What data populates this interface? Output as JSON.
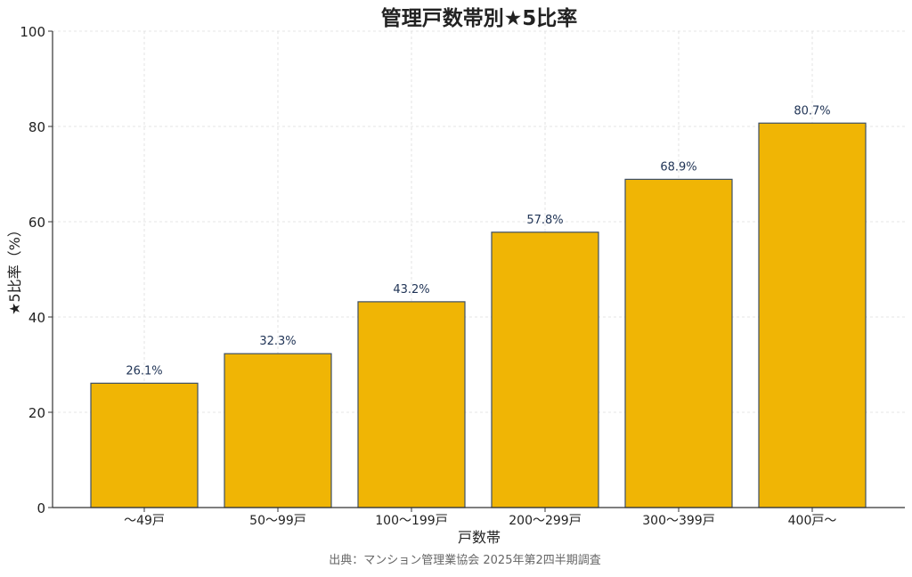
{
  "chart_data": {
    "type": "bar",
    "title": "管理戸数帯別★5比率",
    "xlabel": "戸数帯",
    "ylabel": "★5比率（%）",
    "categories": [
      "〜49戸",
      "50〜99戸",
      "100〜199戸",
      "200〜299戸",
      "300〜399戸",
      "400戸〜"
    ],
    "values": [
      26.1,
      32.3,
      43.2,
      57.8,
      68.9,
      80.7
    ],
    "data_labels": [
      "26.1%",
      "32.3%",
      "43.2%",
      "57.8%",
      "68.9%",
      "80.7%"
    ],
    "ylim": [
      0,
      100
    ],
    "yticks": [
      0,
      20,
      40,
      60,
      80,
      100
    ],
    "ytick_labels": [
      "0",
      "20",
      "40",
      "60",
      "80",
      "100"
    ],
    "grid": true,
    "bar_color": "#f0b505",
    "bar_edge_color": "#3d4f66",
    "label_color": "#1f3355",
    "source": "出典：マンション管理業協会 2025年第2四半期調査"
  }
}
